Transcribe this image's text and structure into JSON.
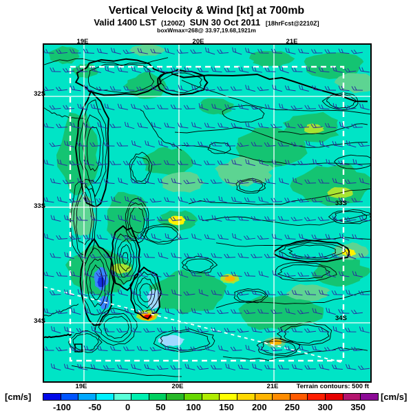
{
  "header": {
    "title": "Vertical Velocity & Wind [kt] at 700mb",
    "valid_prefix": "Valid 1400 LST",
    "init_time": "(1200Z)",
    "valid_date": "SUN 30 Oct 2011",
    "forecast_tag": "[18hrFcst@2210Z]",
    "max_annotation": "boxWmax=268@ 33.97,19.68,1921m"
  },
  "axes": {
    "top_lon": [
      "19E",
      "20E",
      "21E"
    ],
    "bottom_lon": [
      "19E",
      "20E",
      "21E"
    ],
    "left_lat": [
      "32S",
      "33S",
      "34S"
    ],
    "right_lat": [
      "33S",
      "34S"
    ]
  },
  "map": {
    "background": "#00e4c6",
    "contour_color": "#000000",
    "barb_color": "#2b2ba0",
    "grid_color": "#ffffff"
  },
  "notes": {
    "terrain": "Terrain contours: 500 ft"
  },
  "colorbar": {
    "left_unit": "[cm/s]",
    "right_unit": "[cm/s]",
    "tick_labels": [
      "-100",
      "-50",
      "0",
      "50",
      "100",
      "150",
      "200",
      "250",
      "300",
      "350"
    ],
    "segment_colors": [
      "#0008e8",
      "#0054ff",
      "#00a8ff",
      "#00f0ff",
      "#58ffd8",
      "#00f0b0",
      "#00d060",
      "#28b828",
      "#68d800",
      "#b0ec00",
      "#ffff00",
      "#ffd800",
      "#ffb400",
      "#ff8c00",
      "#ff5a00",
      "#ff1e00",
      "#e60000",
      "#b4146e",
      "#8c0a96"
    ]
  },
  "chart_data": {
    "type": "heatmap",
    "title": "Vertical Velocity & Wind [kt] at 700mb",
    "valid": "1400 LST (1200Z) SUN 30 Oct 2011",
    "forecast": "18hrFcst@2210Z",
    "level": "700mb",
    "field": "vertical velocity shaded with wind barbs and terrain contours",
    "units": "cm/s",
    "wind_units": "kt",
    "colorbar_ticks": [
      -100,
      -50,
      0,
      50,
      100,
      150,
      200,
      250,
      300,
      350
    ],
    "colorbar_step": 25,
    "lon_lines": [
      "19E",
      "20E",
      "21E"
    ],
    "lat_lines": [
      "32S",
      "33S",
      "34S"
    ],
    "terrain_contour_interval": "500 ft",
    "box_max": {
      "name": "boxWmax",
      "value_cm_s": 268,
      "lat": 33.97,
      "lon": 19.68,
      "height_m": 1921
    }
  }
}
